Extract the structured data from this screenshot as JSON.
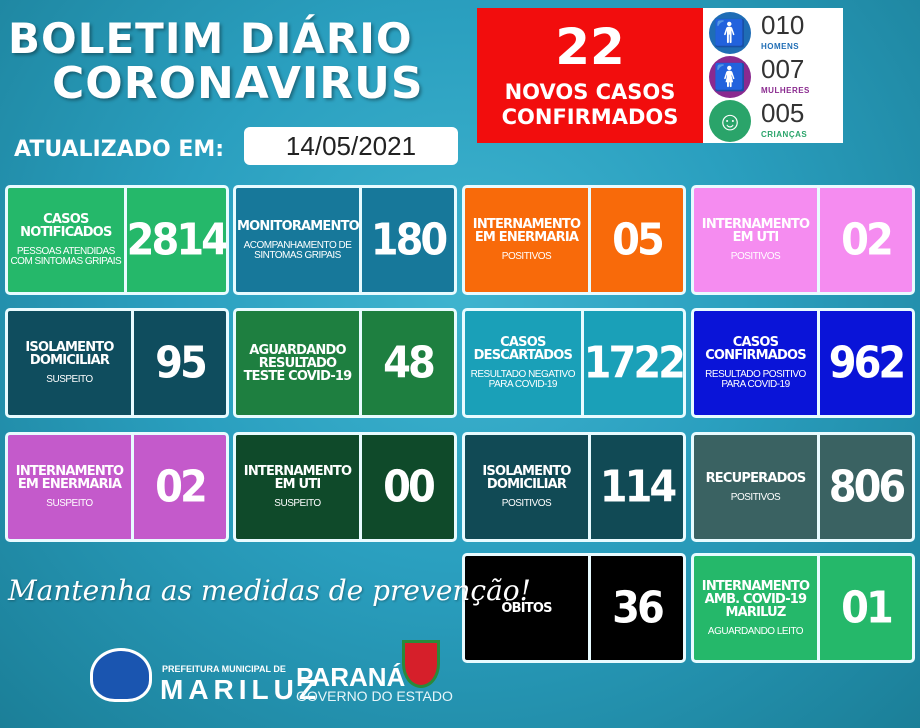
{
  "header": {
    "title_line1": "BOLETIM DIÁRIO",
    "title_line2": "CORONAVIRUS",
    "updated_label": "ATUALIZADO EM:",
    "date": "14/05/2021"
  },
  "new_cases": {
    "value": "22",
    "label": "NOVOS CASOS CONFIRMADOS"
  },
  "demographics": [
    {
      "icon": "man-icon",
      "value": "010",
      "label": "HOMENS",
      "color": "#1f6db5"
    },
    {
      "icon": "woman-icon",
      "value": "007",
      "label": "MULHERES",
      "color": "#8a2a8f"
    },
    {
      "icon": "baby-icon",
      "value": "005",
      "label": "CRIANÇAS",
      "color": "#2aa46a"
    }
  ],
  "cards": [
    {
      "title": "CASOS NOTIFICADOS",
      "subtitle": "PESSOAS ATENDIDAS COM SINTOMAS GRIPAIS",
      "value": "2814",
      "color": "#25b86a"
    },
    {
      "title": "MONITORAMENTO",
      "subtitle": "ACOMPANHAMENTO DE SINTOMAS GRIPAIS",
      "value": "180",
      "color": "#17789a"
    },
    {
      "title": "INTERNAMENTO EM ENERMARIA",
      "subtitle": "POSITIVOS",
      "value": "05",
      "color": "#f86a0a"
    },
    {
      "title": "INTERNAMENTO EM UTI",
      "subtitle": "POSITIVOS",
      "value": "02",
      "color": "#f58cf0"
    },
    {
      "title": "ISOLAMENTO DOMICILIAR",
      "subtitle": "SUSPEITO",
      "value": "95",
      "color": "#0f4d5e"
    },
    {
      "title": "AGUARDANDO RESULTADO TESTE COVID-19",
      "subtitle": "",
      "value": "48",
      "color": "#1e7f40"
    },
    {
      "title": "CASOS DESCARTADOS",
      "subtitle": "RESULTADO NEGATIVO PARA COVID-19",
      "value": "1722",
      "color": "#1aa0b8"
    },
    {
      "title": "CASOS CONFIRMADOS",
      "subtitle": "RESULTADO POSITIVO PARA COVID-19",
      "value": "962",
      "color": "#0a14d8"
    },
    {
      "title": "INTERNAMENTO EM ENERMARIA",
      "subtitle": "SUSPEITO",
      "value": "02",
      "color": "#c45acb"
    },
    {
      "title": "INTERNAMENTO EM UTI",
      "subtitle": "SUSPEITO",
      "value": "00",
      "color": "#0f4a2a"
    },
    {
      "title": "ISOLAMENTO DOMICILIAR",
      "subtitle": "POSITIVOS",
      "value": "114",
      "color": "#114a55"
    },
    {
      "title": "RECUPERADOS",
      "subtitle": "POSITIVOS",
      "value": "806",
      "color": "#3a6262"
    },
    {
      "title": "ÓBITOS",
      "subtitle": "",
      "value": "36",
      "color": "#000000"
    },
    {
      "title": "INTERNAMENTO AMB. COVID-19 MARILUZ",
      "subtitle": "AGUARDANDO LEITO",
      "value": "01",
      "color": "#25b86a"
    }
  ],
  "footer": {
    "slogan": "Mantenha as medidas de prevenção!",
    "pref_line": "PREFEITURA MUNICIPAL DE",
    "city": "MARILUZ",
    "state": "PARANÁ",
    "gov": "GOVERNO DO ESTADO"
  }
}
